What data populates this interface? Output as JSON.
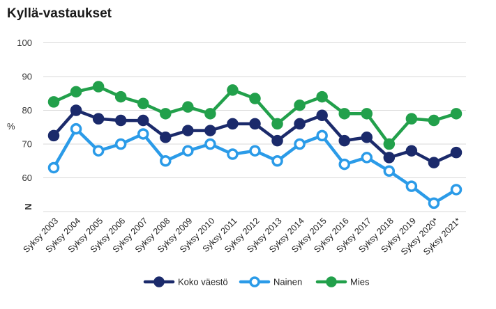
{
  "chart_data": {
    "type": "line",
    "title": "Kyllä-vastaukset",
    "ylabel": "%",
    "ylim": [
      50,
      100
    ],
    "yticks": [
      60,
      70,
      80,
      90,
      100
    ],
    "break_label": "N",
    "categories": [
      "Syksy 2003",
      "Syksy 2004",
      "Syksy 2005",
      "Syksy 2006",
      "Syksy 2007",
      "Syksy 2008",
      "Syksy 2009",
      "Syksy 2010",
      "Syksy 2011",
      "Syksy 2012",
      "Syksy 2013",
      "Syksy 2014",
      "Syksy 2015",
      "Syksy 2016",
      "Syksy 2017",
      "Syksy 2018",
      "Syksy 2019",
      "Syksy 2020*",
      "Syksy 2021*"
    ],
    "series": [
      {
        "name": "Koko väestö",
        "color": "#1b2a6b",
        "marker": "filled",
        "values": [
          72.5,
          80,
          77.5,
          77,
          77,
          72,
          74,
          74,
          76,
          76,
          71,
          76,
          78.5,
          71,
          72,
          66,
          68,
          64.5,
          67.5
        ]
      },
      {
        "name": "Nainen",
        "color": "#2b9be8",
        "marker": "hollow",
        "values": [
          63,
          74.5,
          68,
          70,
          73,
          65,
          68,
          70,
          67,
          68,
          65,
          70,
          72.5,
          64,
          66,
          62,
          57.5,
          52.5,
          56.5
        ]
      },
      {
        "name": "Mies",
        "color": "#22a04b",
        "marker": "filled",
        "values": [
          82.5,
          85.5,
          87,
          84,
          82,
          79,
          81,
          79,
          86,
          83.5,
          76,
          81.5,
          84,
          79,
          79,
          70,
          77.5,
          77,
          79
        ]
      }
    ],
    "legend_position": "bottom-center",
    "grid": "horizontal"
  }
}
